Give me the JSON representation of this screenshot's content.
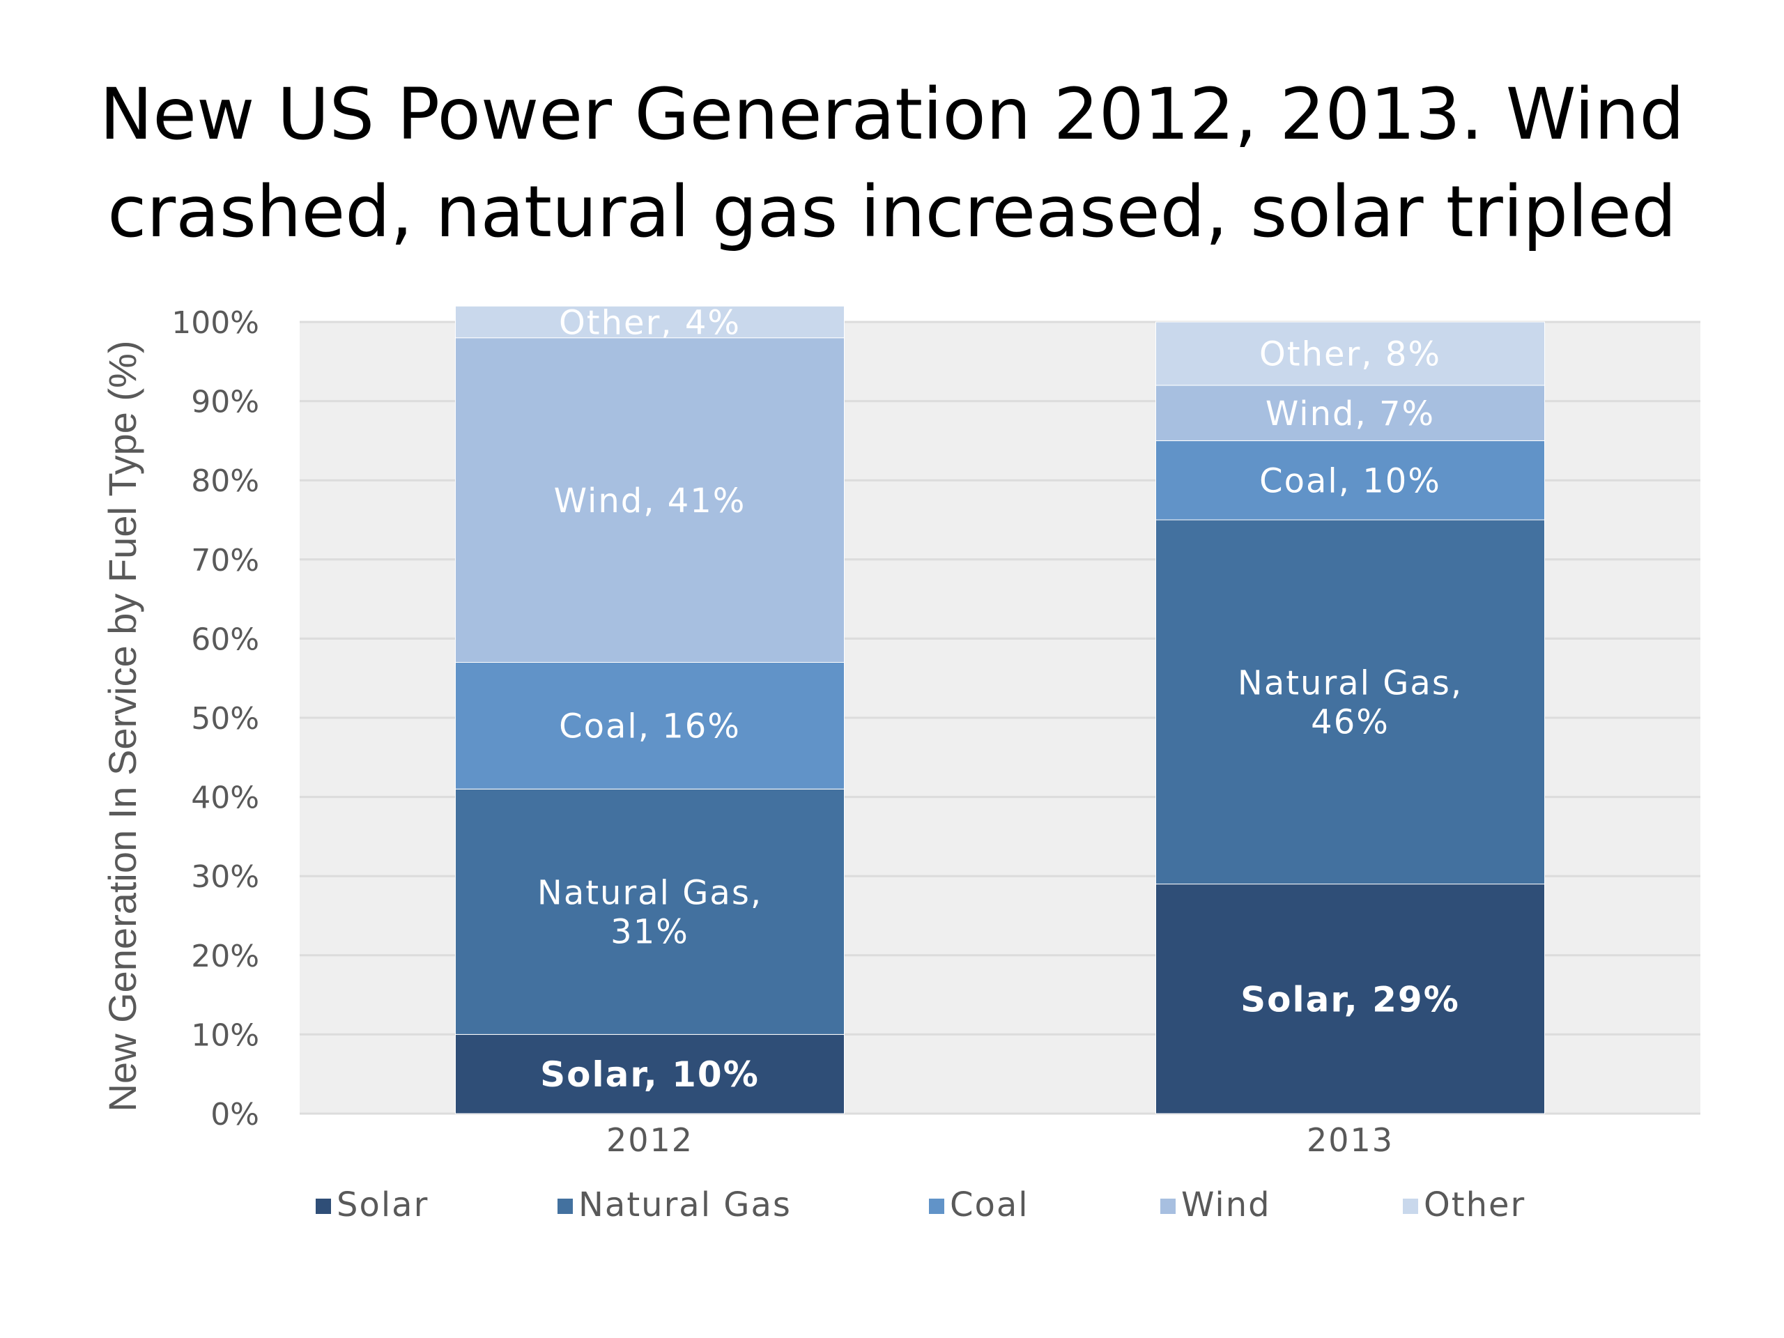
{
  "title": {
    "line1": "New US Power Generation 2012, 2013. Wind",
    "line2": "crashed, natural gas increased, solar tripled"
  },
  "chart_data": {
    "type": "bar",
    "stacked": true,
    "categories": [
      "2012",
      "2013"
    ],
    "ylabel": "New Generation In Service by Fuel Type (%)",
    "ylim": [
      0,
      100
    ],
    "yticks": [
      "0%",
      "10%",
      "20%",
      "30%",
      "40%",
      "50%",
      "60%",
      "70%",
      "80%",
      "90%",
      "100%"
    ],
    "grid": true,
    "legend": "bottom",
    "series": [
      {
        "name": "Solar",
        "color": "#2f4e77",
        "values": [
          10,
          29
        ],
        "labels": [
          "Solar, 10%",
          "Solar, 29%"
        ],
        "bold": true
      },
      {
        "name": "Natural Gas",
        "color": "#43719f",
        "values": [
          31,
          46
        ],
        "labels": [
          "Natural Gas,\n31%",
          "Natural Gas,\n46%"
        ]
      },
      {
        "name": "Coal",
        "color": "#6193c8",
        "values": [
          16,
          10
        ],
        "labels": [
          "Coal, 16%",
          "Coal, 10%"
        ]
      },
      {
        "name": "Wind",
        "color": "#a7bfe0",
        "values": [
          41,
          7
        ],
        "labels": [
          "Wind, 41%",
          "Wind, 7%"
        ]
      },
      {
        "name": "Other",
        "color": "#c9d8ec",
        "values": [
          4,
          8
        ],
        "labels": [
          "Other, 4%",
          "Other, 8%"
        ]
      }
    ]
  }
}
